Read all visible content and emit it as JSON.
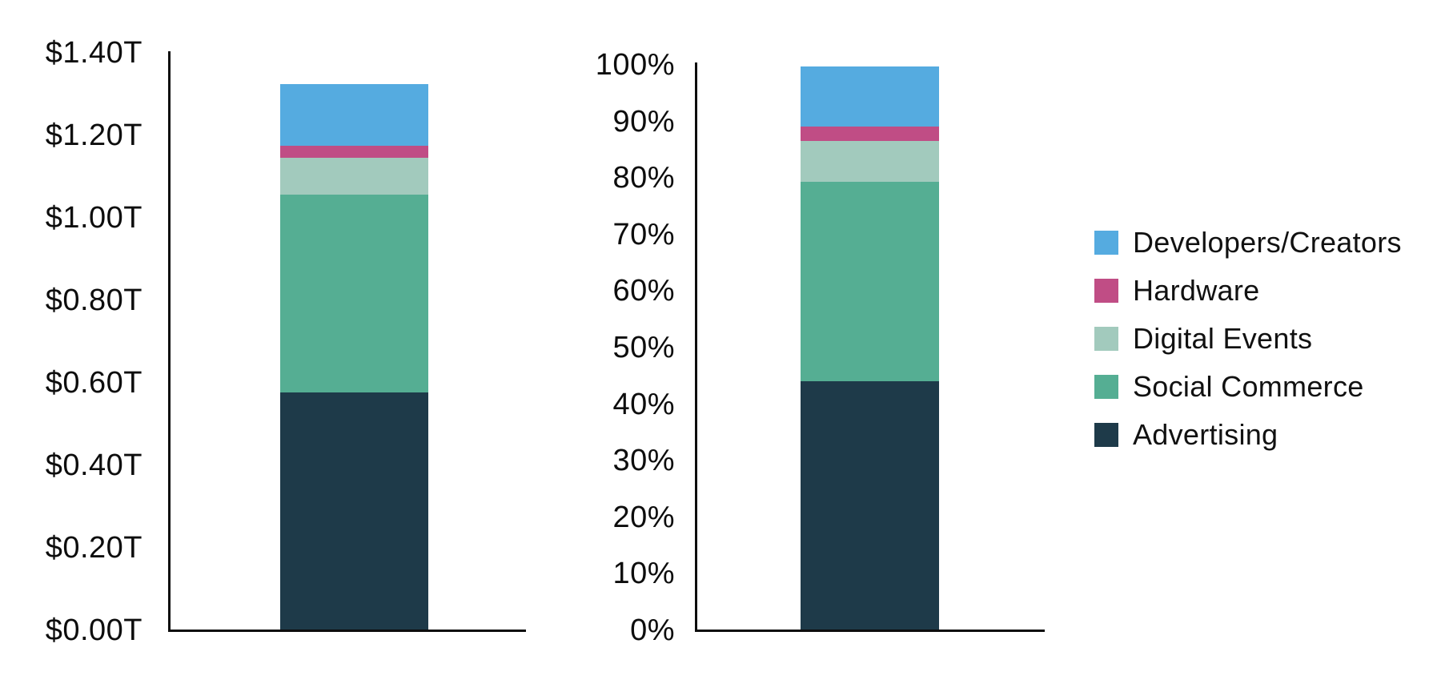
{
  "page": {
    "background": "#ffffff",
    "axis_color": "#0d0d0d",
    "text_color": "#111111"
  },
  "colors": {
    "developers_creators": "#55abe0",
    "hardware": "#c04d85",
    "digital_events": "#a2cabd",
    "social_commerce": "#55ae93",
    "advertising": "#1e3a49"
  },
  "legend": {
    "position": "right",
    "items": [
      {
        "label": "Developers/Creators",
        "color": "#55abe0",
        "swatch_icon": "square-swatch-icon"
      },
      {
        "label": "Hardware",
        "color": "#c04d85",
        "swatch_icon": "square-swatch-icon"
      },
      {
        "label": "Digital Events",
        "color": "#a2cabd",
        "swatch_icon": "square-swatch-icon"
      },
      {
        "label": "Social Commerce",
        "color": "#55ae93",
        "swatch_icon": "square-swatch-icon"
      },
      {
        "label": "Advertising",
        "color": "#1e3a49",
        "swatch_icon": "square-swatch-icon"
      }
    ]
  },
  "chart_data": [
    {
      "id": "dollars",
      "type": "bar",
      "stacked": true,
      "title": "",
      "xlabel": "",
      "ylabel": "",
      "unit": "trillion USD",
      "categories": [
        ""
      ],
      "ylim": [
        0,
        1.4
      ],
      "ytick_step": 0.2,
      "ytick_labels": [
        "$0.00T",
        "$0.20T",
        "$0.40T",
        "$0.60T",
        "$0.80T",
        "$1.00T",
        "$1.20T",
        "$1.40T"
      ],
      "grid": false,
      "legend_position": "right",
      "series": [
        {
          "name": "Advertising",
          "values": [
            0.58
          ],
          "color": "#1e3a49"
        },
        {
          "name": "Social Commerce",
          "values": [
            0.48
          ],
          "color": "#55ae93"
        },
        {
          "name": "Digital Events",
          "values": [
            0.09
          ],
          "color": "#a2cabd"
        },
        {
          "name": "Hardware",
          "values": [
            0.03
          ],
          "color": "#c04d85"
        },
        {
          "name": "Developers/Creators",
          "values": [
            0.15
          ],
          "color": "#55abe0"
        }
      ],
      "stack_order": "bottom-to-top",
      "total_estimate": 1.33
    },
    {
      "id": "percent",
      "type": "bar",
      "stacked": true,
      "title": "",
      "xlabel": "",
      "ylabel": "",
      "unit": "percent",
      "categories": [
        ""
      ],
      "ylim": [
        0,
        100
      ],
      "ytick_step": 10,
      "ytick_labels": [
        "0%",
        "10%",
        "20%",
        "30%",
        "40%",
        "50%",
        "60%",
        "70%",
        "80%",
        "90%",
        "100%"
      ],
      "grid": false,
      "legend_position": "right",
      "series": [
        {
          "name": "Advertising",
          "values": [
            44.3
          ],
          "color": "#1e3a49"
        },
        {
          "name": "Social Commerce",
          "values": [
            35.3
          ],
          "color": "#55ae93"
        },
        {
          "name": "Digital Events",
          "values": [
            7.2
          ],
          "color": "#a2cabd"
        },
        {
          "name": "Hardware",
          "values": [
            2.6
          ],
          "color": "#c04d85"
        },
        {
          "name": "Developers/Creators",
          "values": [
            10.6
          ],
          "color": "#55abe0"
        }
      ],
      "stack_order": "bottom-to-top",
      "total_estimate": 100
    }
  ]
}
